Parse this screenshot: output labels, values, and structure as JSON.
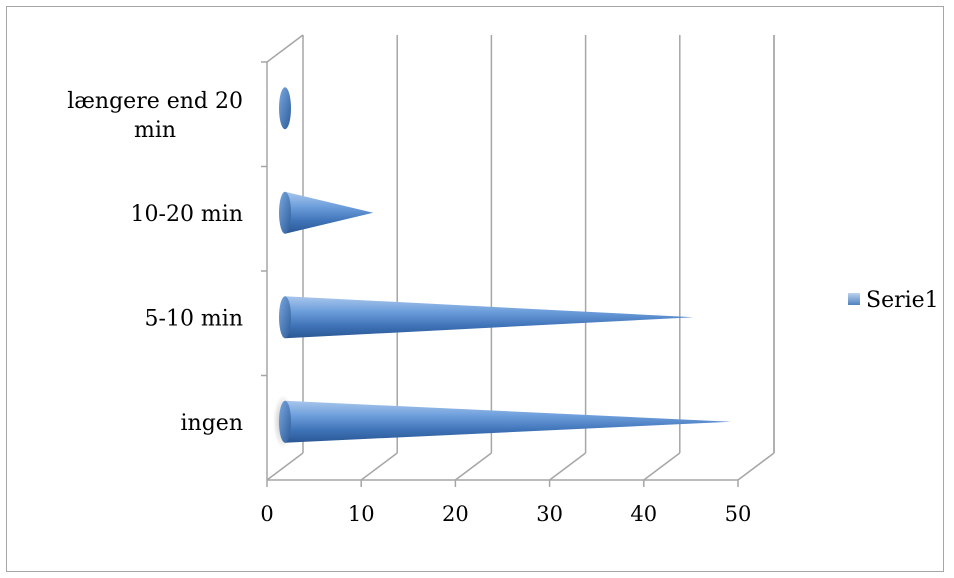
{
  "chart_data": {
    "type": "bar",
    "orientation": "horizontal",
    "bar_shape": "cone",
    "categories": [
      "ingen",
      "5-10 min",
      "10-20 min",
      "længere end 20 min"
    ],
    "category_label_lines": [
      [
        "ingen"
      ],
      [
        "5-10 min"
      ],
      [
        "10-20 min"
      ],
      [
        "længere end 20",
        "min"
      ]
    ],
    "series": [
      {
        "name": "Serie1",
        "values": [
          48,
          44,
          10,
          1
        ]
      }
    ],
    "xlim": [
      0,
      50
    ],
    "xticks": [
      "0",
      "10",
      "20",
      "30",
      "40",
      "50"
    ],
    "grid": true,
    "legend_position": "right",
    "colors": {
      "series": "#4f81bd",
      "series_light": "#bcd3ef",
      "series_dark": "#2a5a94",
      "grid": "#a6a6a6"
    }
  }
}
